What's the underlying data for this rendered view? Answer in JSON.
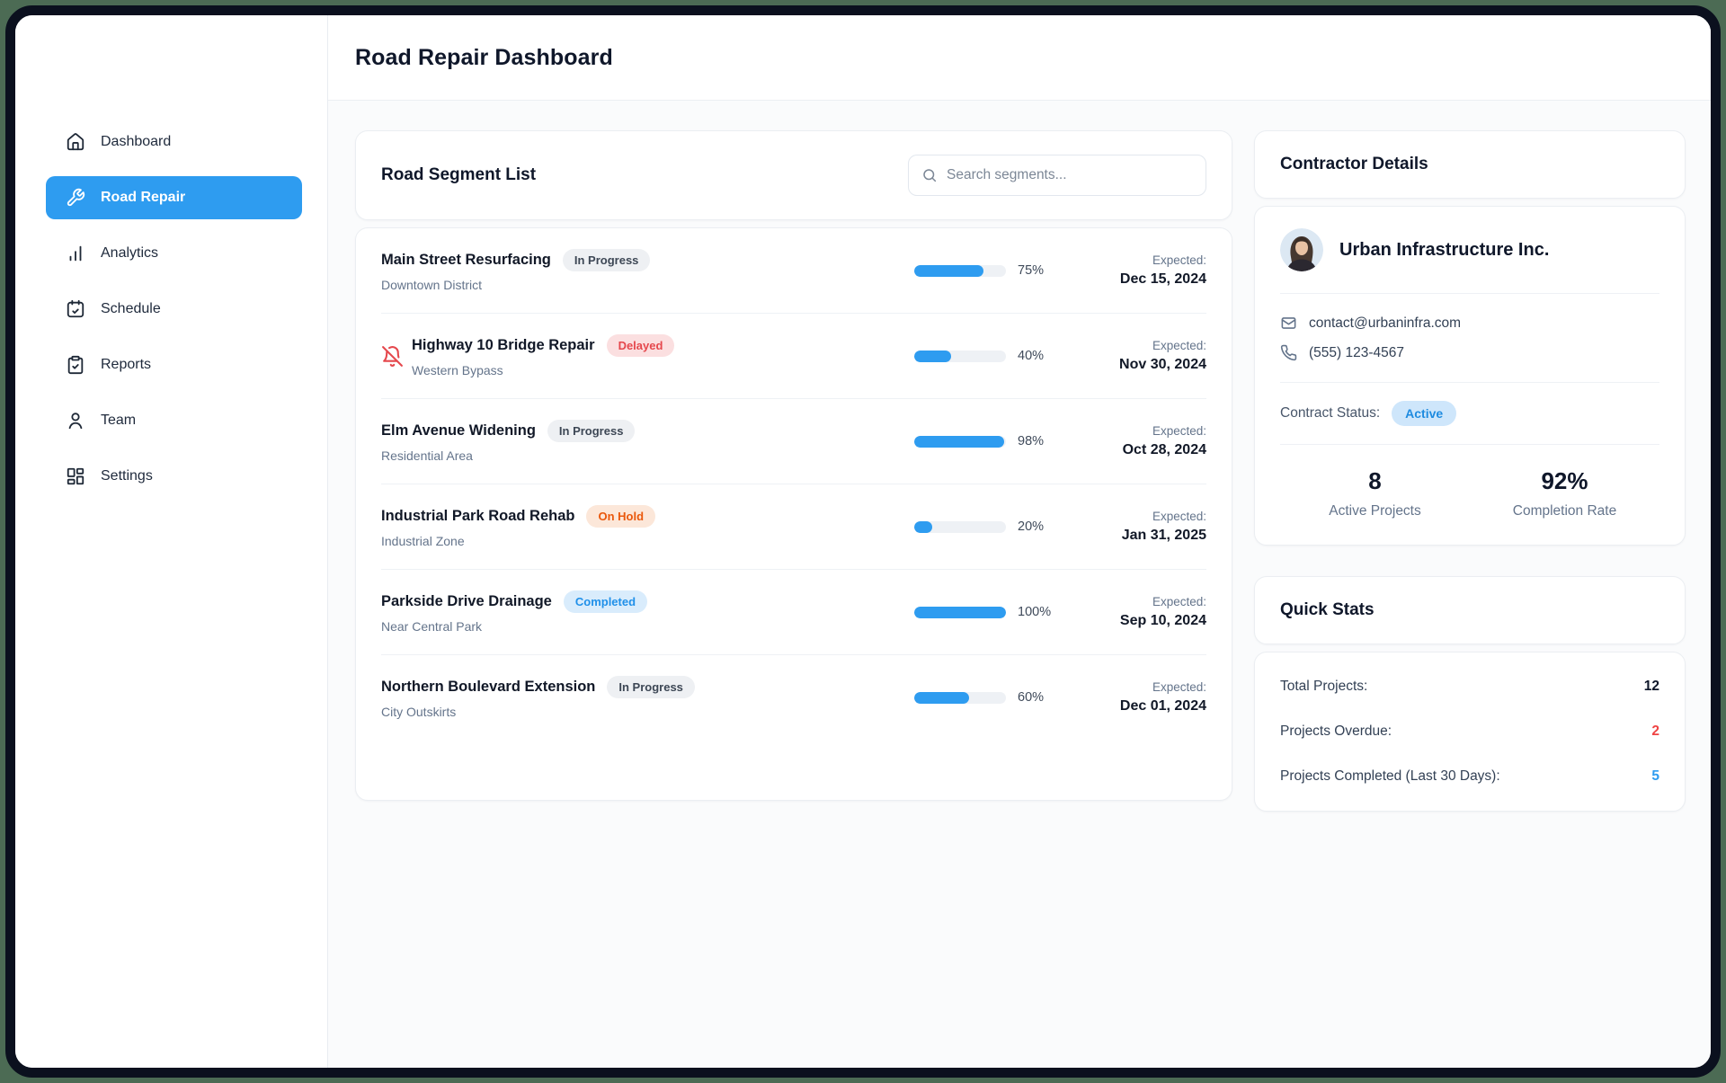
{
  "page": {
    "title": "Road Repair Dashboard"
  },
  "sidebar": {
    "items": [
      {
        "label": "Dashboard",
        "icon": "home-icon",
        "active": false
      },
      {
        "label": "Road Repair",
        "icon": "wrench-icon",
        "active": true
      },
      {
        "label": "Analytics",
        "icon": "bar-chart-icon",
        "active": false
      },
      {
        "label": "Schedule",
        "icon": "calendar-check-icon",
        "active": false
      },
      {
        "label": "Reports",
        "icon": "clipboard-check-icon",
        "active": false
      },
      {
        "label": "Team",
        "icon": "user-icon",
        "active": false
      },
      {
        "label": "Settings",
        "icon": "grid-icon",
        "active": false
      }
    ]
  },
  "list": {
    "title": "Road Segment List",
    "search_placeholder": "Search segments...",
    "expected_label": "Expected:",
    "segments": [
      {
        "title": "Main Street Resurfacing",
        "location": "Downtown District",
        "status": "In Progress",
        "status_key": "in-progress",
        "progress": 75,
        "progress_label": "75%",
        "expected": "Dec 15, 2024"
      },
      {
        "title": "Highway 10 Bridge Repair",
        "location": "Western Bypass",
        "status": "Delayed",
        "status_key": "delayed",
        "progress": 40,
        "progress_label": "40%",
        "expected": "Nov 30, 2024",
        "flag": "bell-off-icon"
      },
      {
        "title": "Elm Avenue Widening",
        "location": "Residential Area",
        "status": "In Progress",
        "status_key": "in-progress",
        "progress": 98,
        "progress_label": "98%",
        "expected": "Oct 28, 2024"
      },
      {
        "title": "Industrial Park Road Rehab",
        "location": "Industrial Zone",
        "status": "On Hold",
        "status_key": "on-hold",
        "progress": 20,
        "progress_label": "20%",
        "expected": "Jan 31, 2025"
      },
      {
        "title": "Parkside Drive Drainage",
        "location": "Near Central Park",
        "status": "Completed",
        "status_key": "completed",
        "progress": 100,
        "progress_label": "100%",
        "expected": "Sep 10, 2024"
      },
      {
        "title": "Northern Boulevard Extension",
        "location": "City Outskirts",
        "status": "In Progress",
        "status_key": "in-progress",
        "progress": 60,
        "progress_label": "60%",
        "expected": "Dec 01, 2024"
      }
    ]
  },
  "contractor": {
    "title": "Contractor Details",
    "name": "Urban Infrastructure Inc.",
    "email": "contact@urbaninfra.com",
    "phone": "(555) 123-4567",
    "contract_status_label": "Contract Status:",
    "contract_status": "Active",
    "stats": [
      {
        "value": "8",
        "label": "Active Projects"
      },
      {
        "value": "92%",
        "label": "Completion Rate"
      }
    ]
  },
  "quick_stats": {
    "title": "Quick Stats",
    "rows": [
      {
        "label": "Total Projects:",
        "value": "12",
        "color_key": "default"
      },
      {
        "label": "Projects Overdue:",
        "value": "2",
        "color_key": "red"
      },
      {
        "label": "Projects Completed (Last 30 Days):",
        "value": "5",
        "color_key": "blue"
      }
    ]
  },
  "colors": {
    "accent_blue": "#2E9CF0",
    "delayed_red": "#E5484D",
    "on_hold_orange": "#EA580C",
    "completed_blue": "#2090E9",
    "backdrop_green": "#4C6B54",
    "frame_dark": "#0B101E"
  }
}
